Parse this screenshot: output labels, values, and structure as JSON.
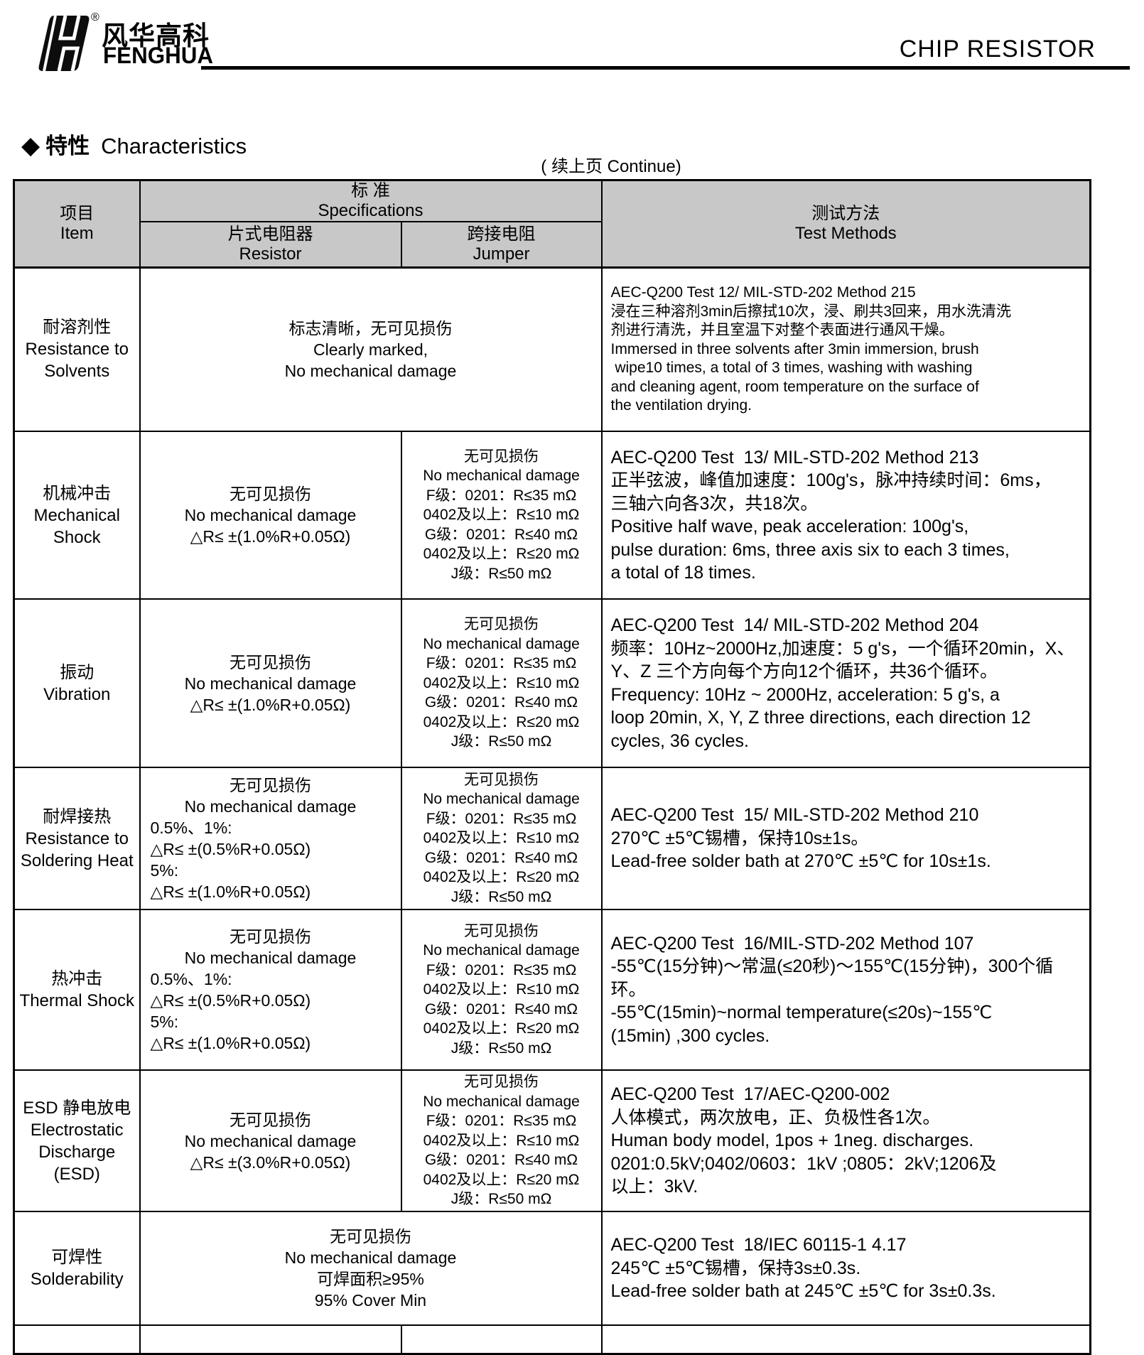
{
  "header": {
    "logo_cn": "风华高科",
    "logo_en": "FENGHUA",
    "reg_mark": "®",
    "doc_title": "CHIP RESISTOR"
  },
  "section": {
    "bullet": "◆",
    "title_cn": "特性",
    "title_en": "Characteristics",
    "continue_note": "( 续上页 Continue)"
  },
  "table": {
    "headers": {
      "item_cn": "项目",
      "item_en": "Item",
      "spec_cn": "标 准",
      "spec_en": "Specifications",
      "resistor_cn": "片式电阻器",
      "resistor_en": "Resistor",
      "jumper_cn": "跨接电阻",
      "jumper_en": "Jumper",
      "test_cn": "测试方法",
      "test_en": "Test Methods"
    },
    "rows": [
      {
        "item": [
          "耐溶剂性",
          "Resistance to",
          "Solvents"
        ],
        "spec": [
          "标志清晰，无可见损伤",
          "Clearly marked,",
          "No mechanical damage"
        ],
        "test": [
          "AEC-Q200 Test 12/ MIL-STD-202 Method 215",
          "浸在三种溶剂3min后擦拭10次，浸、刷共3回来，用水洗清洗",
          "剂进行清洗，并且室温下对整个表面进行通风干燥。",
          "Immersed in three solvents after 3min immersion, brush",
          " wipe10 times, a total of 3 times, washing with washing",
          "and cleaning agent, room temperature on the surface of",
          "the ventilation drying."
        ]
      },
      {
        "item": [
          "机械冲击",
          "Mechanical",
          "Shock"
        ],
        "resistor": [
          "无可见损伤",
          "No mechanical damage",
          "△R≤ ±(1.0%R+0.05Ω)"
        ],
        "jumper": [
          "无可见损伤",
          "No mechanical damage",
          "F级：0201：R≤35 mΩ",
          "0402及以上：R≤10 mΩ",
          "G级：0201：R≤40 mΩ",
          "0402及以上：R≤20 mΩ",
          "J级：R≤50 mΩ"
        ],
        "test": [
          "AEC-Q200 Test  13/ MIL-STD-202 Method 213",
          "正半弦波，峰值加速度：100g's，脉冲持续时间：6ms，",
          "三轴六向各3次，共18次。",
          "Positive half wave, peak acceleration: 100g's,",
          "pulse duration: 6ms, three axis six to each 3 times,",
          "a total of 18 times."
        ]
      },
      {
        "item": [
          "振动",
          "Vibration"
        ],
        "resistor": [
          "无可见损伤",
          "No mechanical damage",
          "△R≤ ±(1.0%R+0.05Ω)"
        ],
        "jumper": [
          "无可见损伤",
          "No mechanical damage",
          "F级：0201：R≤35 mΩ",
          "0402及以上：R≤10 mΩ",
          "G级：0201：R≤40 mΩ",
          "0402及以上：R≤20 mΩ",
          "J级：R≤50 mΩ"
        ],
        "test": [
          "AEC-Q200 Test  14/ MIL-STD-202 Method 204",
          "频率：10Hz~2000Hz,加速度：5 g's，一个循环20min，X、",
          "Y、Z 三个方向每个方向12个循环，共36个循环。",
          "Frequency: 10Hz ~ 2000Hz, acceleration: 5 g's, a",
          "loop 20min, X, Y, Z three directions, each direction 12",
          "cycles, 36 cycles."
        ]
      },
      {
        "item": [
          "耐焊接热",
          "Resistance to",
          "Soldering Heat"
        ],
        "resistor": [
          "无可见损伤",
          "No mechanical damage",
          "0.5%、1%:",
          "△R≤ ±(0.5%R+0.05Ω)",
          "5%:",
          "△R≤ ±(1.0%R+0.05Ω)"
        ],
        "jumper": [
          "无可见损伤",
          "No mechanical damage",
          "F级：0201：R≤35 mΩ",
          "0402及以上：R≤10 mΩ",
          "G级：0201：R≤40 mΩ",
          "0402及以上：R≤20 mΩ",
          "J级：R≤50 mΩ"
        ],
        "test": [
          "AEC-Q200 Test  15/ MIL-STD-202 Method 210",
          "270℃ ±5℃锡槽，保持10s±1s。",
          "Lead-free solder bath at 270℃ ±5℃ for 10s±1s."
        ]
      },
      {
        "item": [
          "热冲击",
          "Thermal Shock"
        ],
        "resistor": [
          "无可见损伤",
          "No mechanical damage",
          "0.5%、1%:",
          "△R≤ ±(0.5%R+0.05Ω)",
          "5%:",
          "△R≤ ±(1.0%R+0.05Ω)"
        ],
        "jumper": [
          "无可见损伤",
          "No mechanical damage",
          "F级：0201：R≤35 mΩ",
          "0402及以上：R≤10 mΩ",
          "G级：0201：R≤40 mΩ",
          "0402及以上：R≤20 mΩ",
          "J级：R≤50 mΩ"
        ],
        "test": [
          "AEC-Q200 Test  16/MIL-STD-202 Method 107",
          "-55℃(15分钟)～常温(≤20秒)～155℃(15分钟)，300个循环。",
          "-55℃(15min)~normal temperature(≤20s)~155℃",
          "(15min) ,300 cycles."
        ]
      },
      {
        "item": [
          "ESD 静电放电",
          "Electrostatic",
          "Discharge",
          "(ESD)"
        ],
        "resistor": [
          "无可见损伤",
          "No mechanical damage",
          "△R≤ ±(3.0%R+0.05Ω)"
        ],
        "jumper": [
          "无可见损伤",
          "No mechanical damage",
          "F级：0201：R≤35 mΩ",
          "0402及以上：R≤10 mΩ",
          "G级：0201：R≤40 mΩ",
          "0402及以上：R≤20 mΩ",
          "J级：R≤50 mΩ"
        ],
        "test": [
          "AEC-Q200 Test  17/AEC-Q200-002",
          "人体模式，两次放电，正、负极性各1次。",
          "Human body model, 1pos + 1neg. discharges.",
          "0201:0.5kV;0402/0603：1kV ;0805：2kV;1206及",
          "以上：3kV."
        ]
      },
      {
        "item": [
          "可焊性",
          "Solderability"
        ],
        "spec": [
          "无可见损伤",
          "No mechanical damage",
          "可焊面积≥95%",
          "95% Cover Min"
        ],
        "test": [
          "AEC-Q200 Test  18/IEC 60115-1 4.17",
          "245℃ ±5℃锡槽，保持3s±0.3s.",
          "Lead-free solder bath at 245℃ ±5℃ for 3s±0.3s."
        ]
      }
    ]
  }
}
